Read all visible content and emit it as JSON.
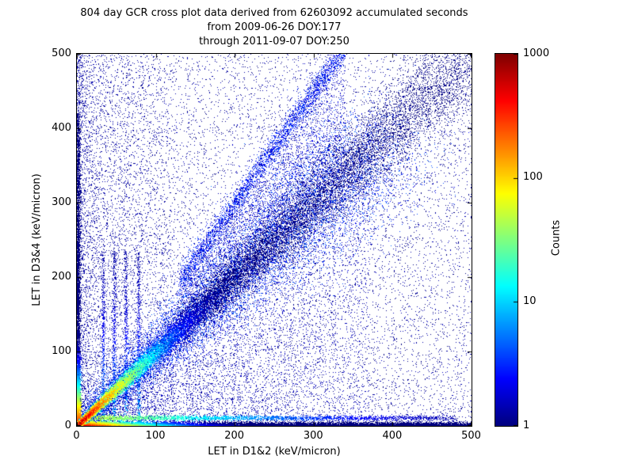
{
  "chart_data": {
    "type": "heatmap",
    "title_lines": [
      "804 day GCR cross plot data derived from 62603092 accumulated seconds",
      "from 2009-06-26 DOY:177",
      "through 2011-09-07 DOY:250"
    ],
    "xlabel": "LET in D1&2 (keV/micron)",
    "ylabel": "LET in D3&4 (keV/micron)",
    "xlim": [
      0,
      500
    ],
    "ylim": [
      0,
      500
    ],
    "xticks": [
      0,
      100,
      200,
      300,
      400,
      500
    ],
    "yticks": [
      0,
      100,
      200,
      300,
      400,
      500
    ],
    "grid": false,
    "colormap": "jet",
    "colorbar": {
      "label": "Counts",
      "scale": "log",
      "min": 1,
      "max": 1000,
      "ticks": [
        1,
        10,
        100,
        1000
      ]
    },
    "description": "2D density cross plot of coincident LET in detectors D1&2 vs D3&4; intense red/yellow ridge along y=x near the origin fading to cyan then blue, hot bands hugging both axes near the origin, faint vertical striations at low x, a secondary steeper band, and diffuse dark-blue single-count scatter across the plane.",
    "density_features": [
      {
        "kind": "uniform",
        "n": 7500,
        "count": 1.1
      },
      {
        "kind": "powerlaw2d",
        "n": 5000,
        "xexp": 1.7,
        "yexp": 1.7,
        "count": 1.3
      },
      {
        "kind": "left_column",
        "n": 3200,
        "xmax": 120,
        "xexp": 2.0,
        "count": 1.3
      },
      {
        "kind": "triangle_below",
        "n": 4500,
        "xmax": 370,
        "count": 1.5
      },
      {
        "kind": "wedge_above",
        "n": 3000,
        "x0": 130,
        "x1": 340,
        "spread": 0.55,
        "count": 1.6
      },
      {
        "kind": "steep_band",
        "n": 2600,
        "slope": 1.5,
        "x0": 130,
        "x1": 340,
        "sigma": 10,
        "count": 2.5
      },
      {
        "kind": "vlines",
        "xs": [
          33,
          47,
          62,
          78
        ],
        "n_each": 450,
        "ymax": 235,
        "sigma": 1.2,
        "peak": 8,
        "decay": 70
      },
      {
        "kind": "hline",
        "n": 3500,
        "y": 11,
        "sigma": 1.6,
        "xmax": 480,
        "xexp": 1.8,
        "peak": 60,
        "decay": 95
      },
      {
        "kind": "diag_scatter",
        "n": 12000,
        "dmax": 380,
        "sig0": 5,
        "siggrow": 0.1,
        "count": 2.5
      },
      {
        "kind": "bottom_band",
        "n": 15000,
        "xexp": 2.2,
        "sigma": 2.6,
        "peak": 800,
        "decay": 28
      },
      {
        "kind": "left_band",
        "n": 5200,
        "yexp": 2.6,
        "ymax": 420,
        "sigma": 2.0,
        "peak": 400,
        "decay": 16
      },
      {
        "kind": "diag_core",
        "n": 26000,
        "dexp": 2.6,
        "sig0": 1.3,
        "siggrow": 0.05,
        "peak": 1000,
        "decay": 22
      }
    ]
  }
}
